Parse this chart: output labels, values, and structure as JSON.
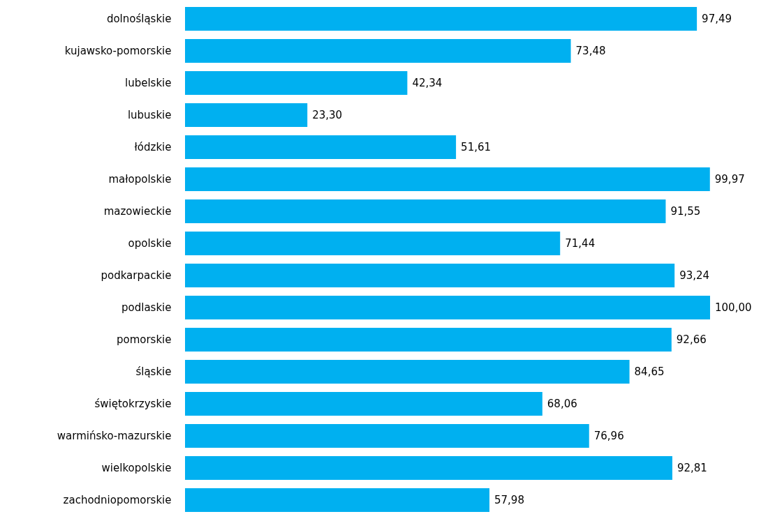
{
  "chart_data": {
    "type": "bar",
    "orientation": "horizontal",
    "categories": [
      "dolnośląskie",
      "kujawsko-pomorskie",
      "lubelskie",
      "lubuskie",
      "łódzkie",
      "małopolskie",
      "mazowieckie",
      "opolskie",
      "podkarpackie",
      "podlaskie",
      "pomorskie",
      "śląskie",
      "świętokrzyskie",
      "warmińsko-mazurskie",
      "wielkopolskie",
      "zachodniopomorskie"
    ],
    "values": [
      97.49,
      73.48,
      42.34,
      23.3,
      51.61,
      99.97,
      91.55,
      71.44,
      93.24,
      100.0,
      92.66,
      84.65,
      68.06,
      76.96,
      92.81,
      57.98
    ],
    "value_labels": [
      "97,49",
      "73,48",
      "42,34",
      "23,30",
      "51,61",
      "99,97",
      "91,55",
      "71,44",
      "93,24",
      "100,00",
      "92,66",
      "84,65",
      "68,06",
      "76,96",
      "92,81",
      "57,98"
    ],
    "color": "#00b0f0",
    "grid": false
  }
}
